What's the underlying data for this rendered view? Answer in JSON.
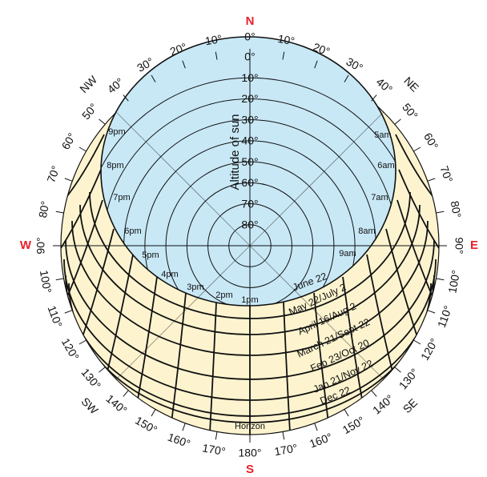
{
  "cardinals": [
    {
      "id": "north",
      "label": "N",
      "az": 0
    },
    {
      "id": "east",
      "label": "E",
      "az": 90
    },
    {
      "id": "south",
      "label": "S",
      "az": 180
    },
    {
      "id": "west",
      "label": "W",
      "az": 270
    }
  ],
  "intercardinals": [
    {
      "id": "northeast",
      "label": "NE",
      "az": 45
    },
    {
      "id": "southeast",
      "label": "SE",
      "az": 135
    },
    {
      "id": "southwest",
      "label": "SW",
      "az": 225
    },
    {
      "id": "northwest",
      "label": "NW",
      "az": 315
    }
  ],
  "azimuth_labels": [
    {
      "az": 0,
      "text": "0°"
    },
    {
      "az": 10,
      "text": "10°"
    },
    {
      "az": 20,
      "text": "20°"
    },
    {
      "az": 30,
      "text": "30°"
    },
    {
      "az": 40,
      "text": "40°"
    },
    {
      "az": 50,
      "text": "50°"
    },
    {
      "az": 60,
      "text": "60°"
    },
    {
      "az": 70,
      "text": "70°"
    },
    {
      "az": 80,
      "text": "80°"
    },
    {
      "az": 90,
      "text": "90°"
    },
    {
      "az": 100,
      "text": "100°"
    },
    {
      "az": 110,
      "text": "110°"
    },
    {
      "az": 120,
      "text": "120°"
    },
    {
      "az": 130,
      "text": "130°"
    },
    {
      "az": 140,
      "text": "140°"
    },
    {
      "az": 150,
      "text": "150°"
    },
    {
      "az": 160,
      "text": "160°"
    },
    {
      "az": 170,
      "text": "170°"
    },
    {
      "az": 180,
      "text": "180°"
    },
    {
      "az": 190,
      "text": "170°"
    },
    {
      "az": 200,
      "text": "160°"
    },
    {
      "az": 210,
      "text": "150°"
    },
    {
      "az": 220,
      "text": "140°"
    },
    {
      "az": 230,
      "text": "130°"
    },
    {
      "az": 240,
      "text": "120°"
    },
    {
      "az": 250,
      "text": "110°"
    },
    {
      "az": 260,
      "text": "100°"
    },
    {
      "az": 270,
      "text": "90°"
    },
    {
      "az": 280,
      "text": "80°"
    },
    {
      "az": 290,
      "text": "70°"
    },
    {
      "az": 300,
      "text": "60°"
    },
    {
      "az": 310,
      "text": "50°"
    },
    {
      "az": 320,
      "text": "40°"
    },
    {
      "az": 330,
      "text": "30°"
    },
    {
      "az": 340,
      "text": "20°"
    },
    {
      "az": 350,
      "text": "10°"
    }
  ],
  "altitude_title": "Altitude of sun",
  "altitude_labels": [
    {
      "alt": 0,
      "text": "0°"
    },
    {
      "alt": 10,
      "text": "10°"
    },
    {
      "alt": 20,
      "text": "20°"
    },
    {
      "alt": 30,
      "text": "30°"
    },
    {
      "alt": 40,
      "text": "40°"
    },
    {
      "alt": 50,
      "text": "50°"
    },
    {
      "alt": 60,
      "text": "60°"
    },
    {
      "alt": 70,
      "text": "70°"
    },
    {
      "alt": 80,
      "text": "80°"
    }
  ],
  "hour_labels": {
    "morning": [
      "5am",
      "6am",
      "7am",
      "8am",
      "9am"
    ],
    "afternoon": [
      "1pm",
      "2pm",
      "3pm",
      "4pm",
      "5pm",
      "6pm",
      "7pm",
      "8pm",
      "9pm"
    ]
  },
  "date_labels": [
    "June 22",
    "May 22/July 2",
    "April 16/Aug 2",
    "March 21/Sept 22",
    "Feb 23/Oct 20",
    "Jan 21/Nov 22",
    "Dec 22"
  ],
  "horizon_label": "Horizon",
  "colors": {
    "sky": "#c8e8f6",
    "ground": "#fdf4cf",
    "cardinal": "#e8202a",
    "lines": "#111111"
  }
}
